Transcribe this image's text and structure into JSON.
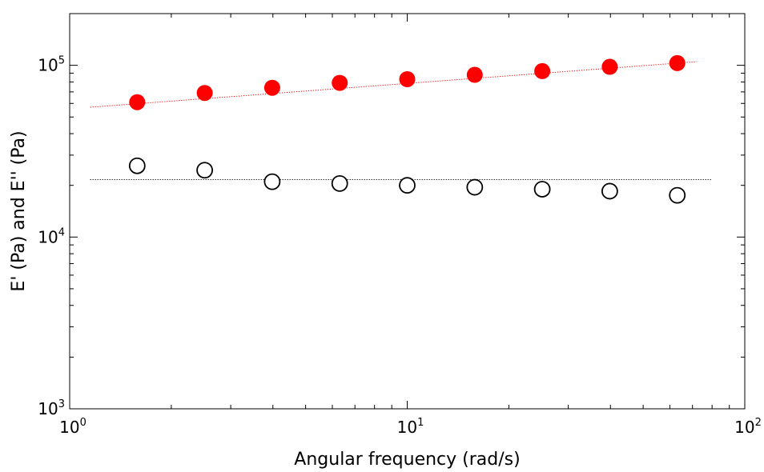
{
  "chart_data": {
    "type": "scatter",
    "xlabel": "Angular frequency (rad/s)",
    "ylabel": "E' (Pa) and E'' (Pa)",
    "x_scale": "log",
    "y_scale": "log",
    "xlim": [
      1,
      100
    ],
    "ylim": [
      1000,
      200000
    ],
    "x_ticks": [
      {
        "value": 1,
        "base": "10",
        "exp": "0"
      },
      {
        "value": 10,
        "base": "10",
        "exp": "1"
      },
      {
        "value": 100,
        "base": "10",
        "exp": "2"
      }
    ],
    "y_ticks": [
      {
        "value": 1000,
        "base": "10",
        "exp": "3"
      },
      {
        "value": 10000,
        "base": "10",
        "exp": "4"
      },
      {
        "value": 100000,
        "base": "10",
        "exp": "5"
      }
    ],
    "grid": false,
    "series": [
      {
        "marker": "filled-circle",
        "color": "#ff0000",
        "x": [
          1.585,
          2.512,
          3.981,
          6.31,
          10,
          15.85,
          25.12,
          39.81,
          63.1
        ],
        "y": [
          61000,
          69000,
          74000,
          79000,
          83000,
          88000,
          92500,
          98000,
          103000
        ],
        "fit": {
          "type": "power-law",
          "x": [
            1.15,
            72
          ],
          "y": [
            57000,
            105000
          ],
          "style": "dotted",
          "color": "#ff0000"
        }
      },
      {
        "marker": "open-circle",
        "color": "#000000",
        "x": [
          1.585,
          2.512,
          3.981,
          6.31,
          10,
          15.85,
          25.12,
          39.81,
          63.1
        ],
        "y": [
          26000,
          24500,
          21000,
          20500,
          20000,
          19500,
          19000,
          18500,
          17500
        ],
        "fit": {
          "type": "constant",
          "x": [
            1.15,
            80
          ],
          "y": [
            21600,
            21600
          ],
          "style": "dotted",
          "color": "#000000"
        }
      }
    ]
  }
}
